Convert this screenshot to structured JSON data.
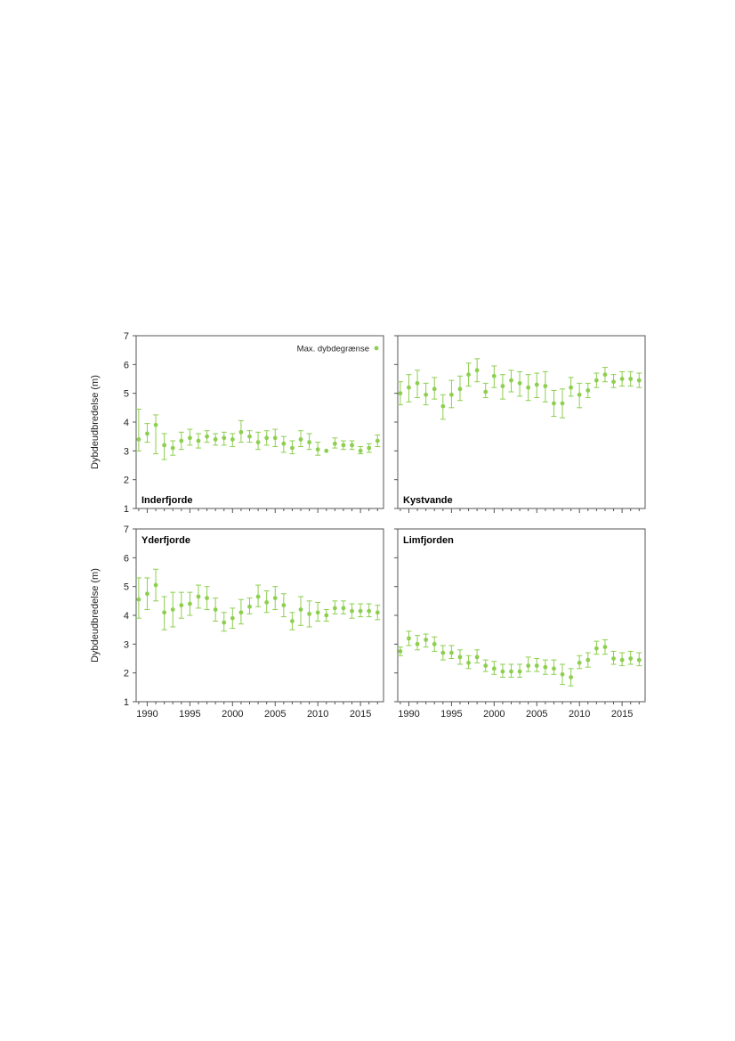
{
  "legend": {
    "label": "Max. dybdegrænse"
  },
  "colors": {
    "series": "#8dcf4f",
    "frame": "#555555",
    "text": "#222222"
  },
  "chart_data": [
    {
      "type": "scatter",
      "title": "Inderfjorde",
      "ylabel": "Dybdeudbredelse (m)",
      "xlabel": "",
      "xlim": [
        1988.7,
        2017.7
      ],
      "ylim": [
        1,
        7
      ],
      "yticks": [
        1,
        2,
        3,
        4,
        5,
        6,
        7
      ],
      "xticks": [
        1990,
        1995,
        2000,
        2005,
        2010,
        2015
      ],
      "legend_position": "top-right",
      "series": [
        {
          "name": "Max. dybdegrænse",
          "x": [
            1989,
            1990,
            1991,
            1992,
            1993,
            1994,
            1995,
            1996,
            1997,
            1998,
            1999,
            2000,
            2001,
            2002,
            2003,
            2004,
            2005,
            2006,
            2007,
            2008,
            2009,
            2010,
            2011,
            2012,
            2013,
            2014,
            2015,
            2016,
            2017
          ],
          "y": [
            3.4,
            3.6,
            3.9,
            3.2,
            3.1,
            3.35,
            3.45,
            3.35,
            3.5,
            3.4,
            3.45,
            3.4,
            3.65,
            3.5,
            3.3,
            3.45,
            3.45,
            3.25,
            3.1,
            3.4,
            3.3,
            3.05,
            3.0,
            3.25,
            3.2,
            3.2,
            3.0,
            3.1,
            3.35
          ],
          "lower": [
            3.0,
            3.3,
            2.9,
            2.7,
            2.85,
            3.05,
            3.2,
            3.1,
            3.3,
            3.2,
            3.2,
            3.15,
            3.3,
            3.3,
            3.05,
            3.2,
            3.15,
            2.95,
            2.9,
            3.15,
            3.05,
            2.85,
            3.0,
            3.1,
            3.05,
            3.05,
            2.9,
            2.95,
            3.15
          ],
          "upper": [
            4.45,
            3.95,
            4.25,
            3.6,
            3.35,
            3.65,
            3.75,
            3.6,
            3.7,
            3.6,
            3.65,
            3.6,
            4.05,
            3.7,
            3.65,
            3.7,
            3.75,
            3.5,
            3.35,
            3.7,
            3.6,
            3.3,
            3.0,
            3.45,
            3.35,
            3.35,
            3.15,
            3.25,
            3.55
          ]
        }
      ]
    },
    {
      "type": "scatter",
      "title": "Kystvande",
      "ylabel": "",
      "xlabel": "",
      "xlim": [
        1988.7,
        2017.7
      ],
      "ylim": [
        1,
        7
      ],
      "yticks": [
        1,
        2,
        3,
        4,
        5,
        6,
        7
      ],
      "xticks": [
        1990,
        1995,
        2000,
        2005,
        2010,
        2015
      ],
      "series": [
        {
          "name": "Max. dybdegrænse",
          "x": [
            1989,
            1990,
            1991,
            1992,
            1993,
            1994,
            1995,
            1996,
            1997,
            1998,
            1999,
            2000,
            2001,
            2002,
            2003,
            2004,
            2005,
            2006,
            2007,
            2008,
            2009,
            2010,
            2011,
            2012,
            2013,
            2014,
            2015,
            2016,
            2017
          ],
          "y": [
            5.0,
            5.2,
            5.35,
            4.95,
            5.15,
            4.55,
            4.95,
            5.15,
            5.65,
            5.8,
            5.05,
            5.6,
            5.25,
            5.45,
            5.35,
            5.2,
            5.3,
            5.25,
            4.65,
            4.65,
            5.2,
            4.95,
            5.1,
            5.45,
            5.65,
            5.4,
            5.5,
            5.5,
            5.45
          ],
          "lower": [
            4.6,
            4.7,
            4.85,
            4.6,
            4.8,
            4.1,
            4.5,
            4.75,
            5.25,
            5.4,
            4.85,
            5.2,
            4.8,
            5.05,
            4.9,
            4.75,
            4.85,
            4.7,
            4.2,
            4.15,
            4.9,
            4.5,
            4.85,
            5.2,
            5.4,
            5.2,
            5.25,
            5.25,
            5.2
          ],
          "upper": [
            5.4,
            5.65,
            5.8,
            5.35,
            5.55,
            4.95,
            5.45,
            5.6,
            6.05,
            6.2,
            5.35,
            5.95,
            5.65,
            5.8,
            5.75,
            5.65,
            5.7,
            5.75,
            5.1,
            5.15,
            5.55,
            5.35,
            5.35,
            5.7,
            5.9,
            5.65,
            5.75,
            5.75,
            5.7
          ]
        }
      ]
    },
    {
      "type": "scatter",
      "title": "Yderfjorde",
      "ylabel": "Dybdeudbredelse (m)",
      "xlabel": "",
      "xlim": [
        1988.7,
        2017.7
      ],
      "ylim": [
        1,
        7
      ],
      "yticks": [
        1,
        2,
        3,
        4,
        5,
        6,
        7
      ],
      "xticks": [
        1990,
        1995,
        2000,
        2005,
        2010,
        2015
      ],
      "series": [
        {
          "name": "Max. dybdegrænse",
          "x": [
            1989,
            1990,
            1991,
            1992,
            1993,
            1994,
            1995,
            1996,
            1997,
            1998,
            1999,
            2000,
            2001,
            2002,
            2003,
            2004,
            2005,
            2006,
            2007,
            2008,
            2009,
            2010,
            2011,
            2012,
            2013,
            2014,
            2015,
            2016,
            2017
          ],
          "y": [
            4.55,
            4.75,
            5.05,
            4.1,
            4.2,
            4.35,
            4.4,
            4.65,
            4.6,
            4.2,
            3.75,
            3.9,
            4.1,
            4.3,
            4.65,
            4.45,
            4.6,
            4.35,
            3.8,
            4.2,
            4.05,
            4.1,
            4.0,
            4.25,
            4.25,
            4.15,
            4.15,
            4.15,
            4.1
          ],
          "lower": [
            3.9,
            4.2,
            4.5,
            3.5,
            3.6,
            3.9,
            4.0,
            4.25,
            4.2,
            3.8,
            3.45,
            3.55,
            3.7,
            4.05,
            4.3,
            4.1,
            4.2,
            3.95,
            3.5,
            3.65,
            3.6,
            3.8,
            3.8,
            4.05,
            4.05,
            3.9,
            3.95,
            3.95,
            3.85
          ],
          "upper": [
            5.3,
            5.3,
            5.6,
            4.65,
            4.8,
            4.8,
            4.8,
            5.05,
            5.0,
            4.6,
            4.1,
            4.25,
            4.55,
            4.6,
            5.05,
            4.85,
            5.0,
            4.75,
            4.1,
            4.65,
            4.5,
            4.45,
            4.2,
            4.5,
            4.5,
            4.4,
            4.4,
            4.4,
            4.35
          ]
        }
      ]
    },
    {
      "type": "scatter",
      "title": "Limfjorden",
      "ylabel": "",
      "xlabel": "",
      "xlim": [
        1988.7,
        2017.7
      ],
      "ylim": [
        1,
        7
      ],
      "yticks": [
        1,
        2,
        3,
        4,
        5,
        6,
        7
      ],
      "xticks": [
        1990,
        1995,
        2000,
        2005,
        2010,
        2015
      ],
      "series": [
        {
          "name": "Max. dybdegrænse",
          "x": [
            1989,
            1990,
            1991,
            1992,
            1993,
            1994,
            1995,
            1996,
            1997,
            1998,
            1999,
            2000,
            2001,
            2002,
            2003,
            2004,
            2005,
            2006,
            2007,
            2008,
            2009,
            2010,
            2011,
            2012,
            2013,
            2014,
            2015,
            2016,
            2017
          ],
          "y": [
            2.75,
            3.2,
            3.0,
            3.15,
            3.0,
            2.7,
            2.7,
            2.55,
            2.35,
            2.55,
            2.25,
            2.15,
            2.05,
            2.05,
            2.05,
            2.25,
            2.25,
            2.2,
            2.15,
            1.95,
            1.85,
            2.35,
            2.45,
            2.85,
            2.9,
            2.5,
            2.45,
            2.5,
            2.45
          ],
          "lower": [
            2.6,
            2.95,
            2.8,
            2.9,
            2.75,
            2.45,
            2.5,
            2.3,
            2.15,
            2.35,
            2.05,
            1.95,
            1.85,
            1.85,
            1.85,
            2.05,
            2.05,
            1.95,
            1.95,
            1.6,
            1.55,
            2.15,
            2.2,
            2.65,
            2.65,
            2.3,
            2.25,
            2.3,
            2.25
          ],
          "upper": [
            2.9,
            3.45,
            3.3,
            3.35,
            3.25,
            2.95,
            2.95,
            2.8,
            2.6,
            2.8,
            2.45,
            2.4,
            2.3,
            2.3,
            2.3,
            2.55,
            2.5,
            2.45,
            2.45,
            2.3,
            2.15,
            2.6,
            2.7,
            3.1,
            3.15,
            2.75,
            2.7,
            2.75,
            2.7
          ]
        }
      ]
    }
  ]
}
